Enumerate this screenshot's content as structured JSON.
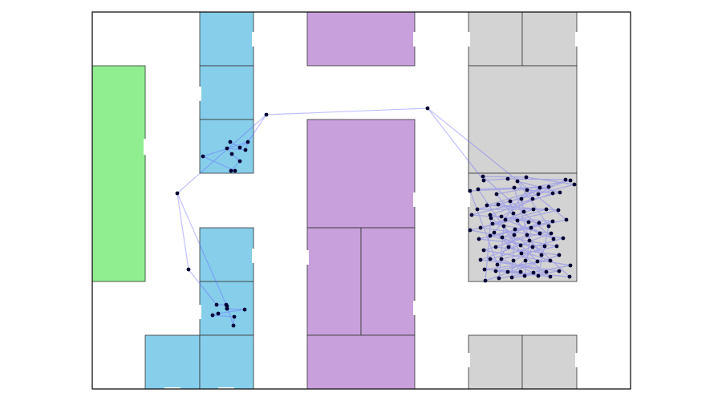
{
  "colors": {
    "background": "#ffffff",
    "boundary": "#000000",
    "room_green": "#90ee90",
    "room_blue": "#87ceeb",
    "room_purple": "#c8a0dc",
    "room_gray": "#d3d3d3",
    "room_stroke": "#333333",
    "trajectory_line": "#6464ff",
    "point": "#000033"
  },
  "rooms": [
    {
      "id": "green-0",
      "fill": "room_green"
    },
    {
      "id": "blue-0",
      "fill": "room_blue"
    },
    {
      "id": "blue-1",
      "fill": "room_blue"
    },
    {
      "id": "blue-2",
      "fill": "room_blue"
    },
    {
      "id": "blue-3",
      "fill": "room_blue"
    },
    {
      "id": "blue-4",
      "fill": "room_blue"
    },
    {
      "id": "blue-5",
      "fill": "room_blue"
    },
    {
      "id": "blue-6",
      "fill": "room_blue"
    },
    {
      "id": "purple-0",
      "fill": "room_purple"
    },
    {
      "id": "purple-1",
      "fill": "room_purple"
    },
    {
      "id": "purple-2",
      "fill": "room_purple"
    },
    {
      "id": "purple-3",
      "fill": "room_purple"
    },
    {
      "id": "purple-4",
      "fill": "room_purple"
    },
    {
      "id": "gray-0",
      "fill": "room_gray"
    },
    {
      "id": "gray-1",
      "fill": "room_gray"
    },
    {
      "id": "gray-2",
      "fill": "room_gray"
    },
    {
      "id": "gray-3",
      "fill": "room_gray"
    },
    {
      "id": "gray-4",
      "fill": "room_gray"
    },
    {
      "id": "gray-5",
      "fill": "room_gray"
    }
  ],
  "trajectory": {
    "visit_counts": {
      "blue_upper_room": 10,
      "blue_lower_room": 9,
      "gray_room": 90
    }
  }
}
